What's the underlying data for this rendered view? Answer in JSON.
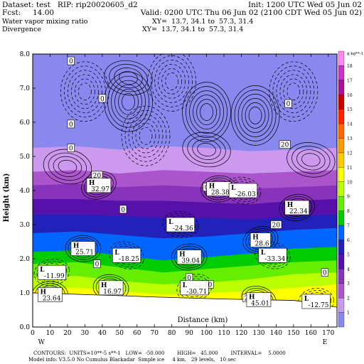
{
  "header": {
    "line1_left": "Dataset: test   RIP: rip20020605_d2",
    "line1_right": "Init: 1200 UTC Wed 05 Jun 02",
    "line2_left": "Fcst:     14.00",
    "line2_right": "Valid: 0200 UTC Thu 06 Jun 02 (2100 CDT Wed 05 Jun 02)",
    "line3_left": "Water vapor mixing ratio",
    "line3_right": "XY=  13.7, 34.1 to  57.3, 31.4",
    "line4_left": "Divergence",
    "line4_right": "XY=  13.7, 34.1 to  57.3, 31.4"
  },
  "footer": {
    "line1": "CONTOURS:  UNITS=10**-5 s**-1   LOW=  -50.000        HIGH=   45.000        INTERVAL=    5.0000",
    "line2": "Model info: V3.5.0 No Cumulus Blackadar  Simple ice     4 km,   29 levels,   10 sec"
  },
  "colorbar": {
    "unit_label": "g kg**-1",
    "levels": [
      18,
      17,
      16,
      15,
      14,
      13,
      12,
      11,
      10,
      9,
      8,
      7,
      6,
      5,
      4,
      3,
      2,
      1
    ],
    "colors": [
      "#ff88ee",
      "#cc33cc",
      "#aa1199",
      "#cc0000",
      "#ff2200",
      "#ff6600",
      "#ff9900",
      "#ffcc00",
      "#ffff00",
      "#bbff00",
      "#66ee00",
      "#00cc00",
      "#0066ff",
      "#2222bb",
      "#5511aa",
      "#8833bb",
      "#aa55cc",
      "#cc99ee"
    ],
    "below_color": "#8888ee"
  },
  "chart_data": {
    "type": "heatmap",
    "title": "Water vapor mixing ratio / Divergence",
    "xlabel": "Distance (km)",
    "ylabel": "Height (km)",
    "xlim": [
      0,
      175
    ],
    "ylim": [
      0,
      8
    ],
    "x_ticks": [
      0,
      10,
      20,
      30,
      40,
      50,
      60,
      70,
      80,
      90,
      100,
      110,
      120,
      130,
      140,
      150,
      160,
      170
    ],
    "y_ticks": [
      "0.0",
      "1.0",
      "2.0",
      "3.0",
      "4.0",
      "5.0",
      "6.0",
      "7.0",
      "8.0"
    ],
    "x_end_labels": {
      "left": "W",
      "right": "E"
    },
    "color_field_layers": [
      {
        "level": "below 1",
        "profile": [
          [
            0,
            5.9
          ],
          [
            25,
            6.0
          ],
          [
            50,
            5.9
          ],
          [
            75,
            6.0
          ],
          [
            100,
            5.95
          ],
          [
            125,
            5.9
          ],
          [
            150,
            5.95
          ],
          [
            175,
            6.0
          ]
        ],
        "color": "#8888ee"
      },
      {
        "level": "1-2",
        "profile": [
          [
            0,
            5.25
          ],
          [
            25,
            5.3
          ],
          [
            50,
            5.2
          ],
          [
            75,
            5.3
          ],
          [
            100,
            5.25
          ],
          [
            125,
            5.15
          ],
          [
            150,
            5.2
          ],
          [
            175,
            5.25
          ]
        ],
        "color": "#cc99ee"
      },
      {
        "level": "2-3",
        "profile": [
          [
            0,
            4.55
          ],
          [
            25,
            4.6
          ],
          [
            50,
            4.5
          ],
          [
            75,
            4.6
          ],
          [
            100,
            4.55
          ],
          [
            125,
            4.5
          ],
          [
            150,
            4.55
          ],
          [
            175,
            4.6
          ]
        ],
        "color": "#aa55cc"
      },
      {
        "level": "3-4",
        "profile": [
          [
            0,
            4.15
          ],
          [
            25,
            4.2
          ],
          [
            50,
            4.1
          ],
          [
            75,
            4.15
          ],
          [
            100,
            4.1
          ],
          [
            125,
            4.05
          ],
          [
            150,
            4.1
          ],
          [
            175,
            4.15
          ]
        ],
        "color": "#8833bb"
      },
      {
        "level": "4-5",
        "profile": [
          [
            0,
            3.75
          ],
          [
            25,
            3.75
          ],
          [
            50,
            3.7
          ],
          [
            75,
            3.7
          ],
          [
            100,
            3.65
          ],
          [
            125,
            3.6
          ],
          [
            150,
            3.7
          ],
          [
            175,
            3.75
          ]
        ],
        "color": "#5511aa"
      },
      {
        "level": "5-6",
        "profile": [
          [
            0,
            3.3
          ],
          [
            25,
            3.3
          ],
          [
            50,
            3.25
          ],
          [
            75,
            3.2
          ],
          [
            100,
            3.2
          ],
          [
            125,
            3.15
          ],
          [
            150,
            3.25
          ],
          [
            175,
            3.3
          ]
        ],
        "color": "#2222bb"
      },
      {
        "level": "6-7",
        "profile": [
          [
            0,
            2.75
          ],
          [
            25,
            2.8
          ],
          [
            50,
            2.7
          ],
          [
            75,
            2.6
          ],
          [
            100,
            2.65
          ],
          [
            125,
            2.75
          ],
          [
            150,
            2.85
          ],
          [
            175,
            2.9
          ]
        ],
        "color": "#0066ff"
      },
      {
        "level": "7-8",
        "profile": [
          [
            0,
            2.2
          ],
          [
            25,
            2.25
          ],
          [
            50,
            2.1
          ],
          [
            75,
            1.95
          ],
          [
            100,
            2.05
          ],
          [
            125,
            2.15
          ],
          [
            150,
            2.3
          ],
          [
            175,
            2.35
          ]
        ],
        "color": "#00cc00"
      },
      {
        "level": "8-9",
        "profile": [
          [
            0,
            1.85
          ],
          [
            25,
            1.9
          ],
          [
            50,
            1.75
          ],
          [
            75,
            1.6
          ],
          [
            100,
            1.7
          ],
          [
            125,
            1.8
          ],
          [
            150,
            1.9
          ],
          [
            175,
            1.95
          ]
        ],
        "color": "#66ee00"
      },
      {
        "level": "9-10",
        "profile": [
          [
            0,
            1.45
          ],
          [
            25,
            1.5
          ],
          [
            50,
            1.35
          ],
          [
            75,
            1.25
          ],
          [
            100,
            1.3
          ],
          [
            125,
            1.4
          ],
          [
            150,
            1.55
          ],
          [
            175,
            1.6
          ]
        ],
        "color": "#bbff00"
      },
      {
        "level": "10-11",
        "profile": [
          [
            0,
            1.1
          ],
          [
            25,
            1.15
          ],
          [
            50,
            1.05
          ],
          [
            75,
            0.95
          ],
          [
            100,
            1.0
          ],
          [
            125,
            1.05
          ],
          [
            150,
            1.15
          ],
          [
            175,
            1.25
          ]
        ],
        "color": "#ffff00"
      }
    ],
    "terrain_top": [
      [
        0,
        1.0
      ],
      [
        15,
        0.98
      ],
      [
        30,
        0.95
      ],
      [
        50,
        0.92
      ],
      [
        70,
        0.88
      ],
      [
        90,
        0.85
      ],
      [
        110,
        0.82
      ],
      [
        130,
        0.8
      ],
      [
        150,
        0.78
      ],
      [
        160,
        0.72
      ],
      [
        170,
        0.62
      ],
      [
        175,
        0.58
      ]
    ],
    "contour_annotations": [
      {
        "text": "0",
        "x": 22,
        "y": 7.8
      },
      {
        "text": "0",
        "x": 40,
        "y": 6.7
      },
      {
        "text": "0",
        "x": 22,
        "y": 5.95
      },
      {
        "text": "0",
        "x": 147,
        "y": 6.55
      },
      {
        "text": "0",
        "x": 22,
        "y": 5.25
      },
      {
        "text": "20",
        "x": 145,
        "y": 5.35
      },
      {
        "text": "20",
        "x": 37,
        "y": 4.45
      },
      {
        "text": "0",
        "x": 100,
        "y": 4.1
      },
      {
        "text": "0",
        "x": 52,
        "y": 3.45
      },
      {
        "text": "20",
        "x": 140,
        "y": 3.0
      },
      {
        "text": "0",
        "x": 37,
        "y": 1.85
      },
      {
        "text": "0",
        "x": 90,
        "y": 1.45
      },
      {
        "text": "0",
        "x": 102,
        "y": 1.25
      },
      {
        "text": "0",
        "x": 168,
        "y": 1.6
      },
      {
        "text": "20",
        "x": 124,
        "y": 0.85
      }
    ],
    "extrema": [
      {
        "type": "H",
        "value": "32.97",
        "x": 38,
        "y": 4.15
      },
      {
        "type": "H",
        "value": "28.38",
        "x": 107,
        "y": 4.05
      },
      {
        "type": "L",
        "value": "-26.03",
        "x": 121,
        "y": 4.0
      },
      {
        "type": "H",
        "value": "22.34",
        "x": 152,
        "y": 3.5
      },
      {
        "type": "L",
        "value": "-24.36",
        "x": 85,
        "y": 3.0
      },
      {
        "type": "H",
        "value": "28.6",
        "x": 131,
        "y": 2.55
      },
      {
        "type": "H",
        "value": "25.71",
        "x": 29,
        "y": 2.3
      },
      {
        "type": "L",
        "value": "-18.25",
        "x": 54,
        "y": 2.1
      },
      {
        "type": "H",
        "value": "39.04",
        "x": 90,
        "y": 2.05
      },
      {
        "type": "L",
        "value": "-33.34",
        "x": 138,
        "y": 2.1
      },
      {
        "type": "L",
        "value": "-11.99",
        "x": 11,
        "y": 1.6
      },
      {
        "type": "H",
        "value": "16.97",
        "x": 45,
        "y": 1.15
      },
      {
        "type": "L",
        "value": "-30.71",
        "x": 93,
        "y": 1.15
      },
      {
        "type": "H",
        "value": "23.64",
        "x": 10,
        "y": 0.95
      },
      {
        "type": "H",
        "value": "45.01",
        "x": 130,
        "y": 0.8
      },
      {
        "type": "L",
        "value": "-12.75",
        "x": 163,
        "y": 0.75
      }
    ],
    "legend": "none"
  }
}
